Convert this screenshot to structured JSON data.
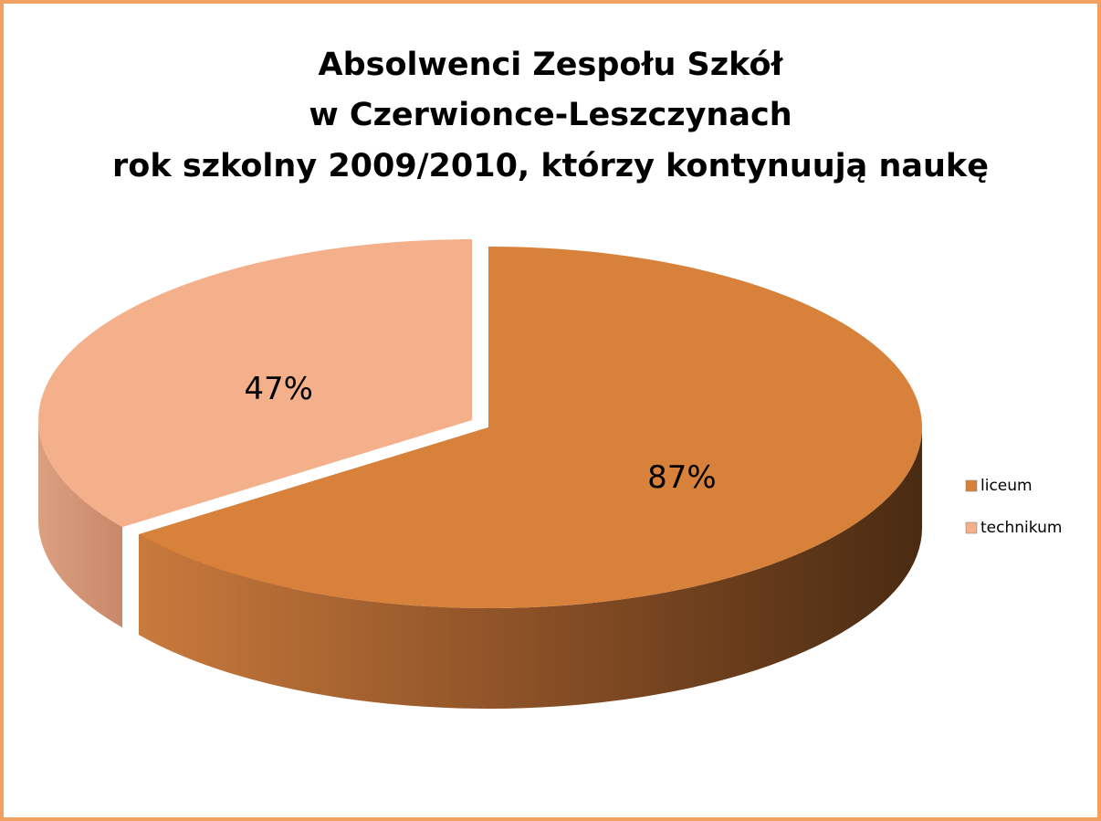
{
  "chart_data": {
    "type": "pie3d",
    "title": [
      "Absolwenci Zespołu Szkół",
      "w Czerwionce-Leszczynach",
      "rok szkolny 2009/2010, którzy kontynuują naukę"
    ],
    "categories": [
      "liceum",
      "technikum"
    ],
    "values": [
      87,
      47
    ],
    "value_labels": [
      "87%",
      "47%"
    ],
    "colors": [
      "#d8813b",
      "#f4b08a"
    ],
    "legend": "right"
  }
}
